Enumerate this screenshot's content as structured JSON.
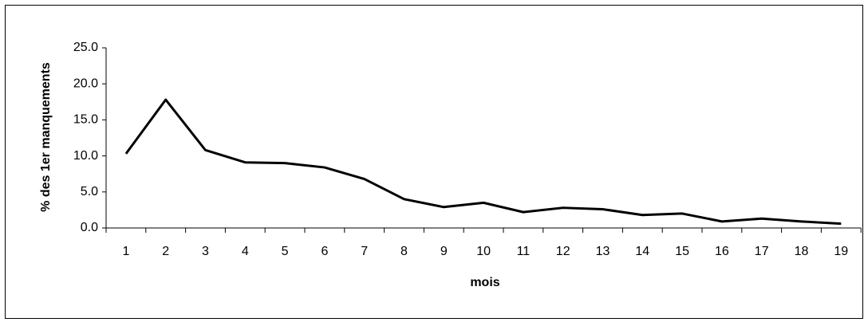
{
  "chart_data": {
    "type": "line",
    "x_label": "mois",
    "y_label": "% des 1er manquements",
    "categories": [
      "1",
      "2",
      "3",
      "4",
      "5",
      "6",
      "7",
      "8",
      "9",
      "10",
      "11",
      "12",
      "13",
      "14",
      "15",
      "16",
      "17",
      "18",
      "19"
    ],
    "series": [
      {
        "name": "% des 1er manquements",
        "color": "#000000",
        "values": [
          10.3,
          17.8,
          10.8,
          9.1,
          9.0,
          8.4,
          6.8,
          4.0,
          2.9,
          3.5,
          2.2,
          2.8,
          2.6,
          1.8,
          2.0,
          0.9,
          1.3,
          0.9,
          0.6
        ]
      }
    ],
    "ylim": [
      0,
      25
    ],
    "yticks": [
      {
        "value": 0,
        "label": "0.0"
      },
      {
        "value": 5,
        "label": "5.0"
      },
      {
        "value": 10,
        "label": "10.0"
      },
      {
        "value": 15,
        "label": "15.0"
      },
      {
        "value": 20,
        "label": "20.0"
      },
      {
        "value": 25,
        "label": "25.0"
      }
    ],
    "grid": false
  }
}
